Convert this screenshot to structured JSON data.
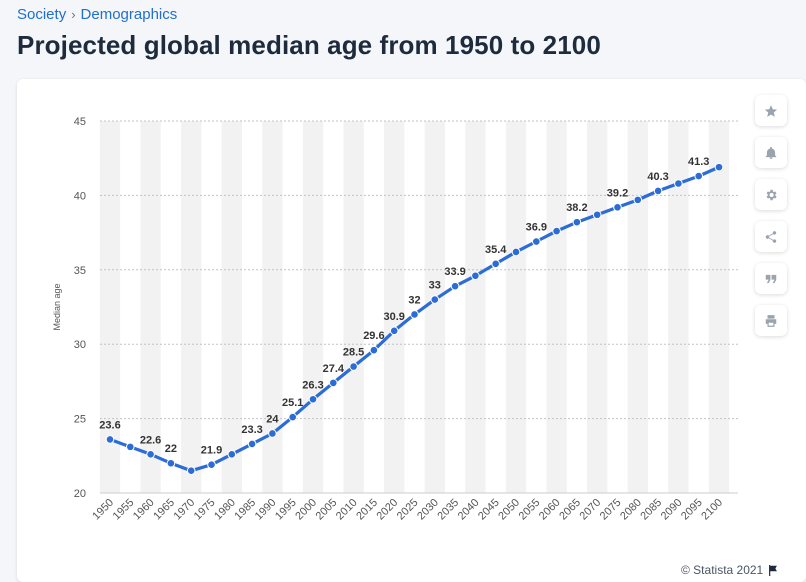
{
  "breadcrumb": {
    "items": [
      "Society",
      "Demographics"
    ],
    "separator": "›"
  },
  "title": "Projected global median age from 1950 to 2100",
  "credit": "© Statista 2021",
  "toolbar": {
    "icons": [
      "star-icon",
      "bell-icon",
      "gear-icon",
      "share-icon",
      "quote-icon",
      "print-icon"
    ]
  },
  "colors": {
    "line": "#2c6cd6",
    "accent": "#1f6fd1",
    "band": "#f2f2f2"
  },
  "chart_data": {
    "type": "line",
    "title": "",
    "xlabel": "",
    "ylabel": "Median age",
    "ylim": [
      20,
      45
    ],
    "yticks": [
      20,
      25,
      30,
      35,
      40,
      45
    ],
    "grid": true,
    "x": [
      "1950",
      "1955",
      "1960",
      "1965",
      "1970",
      "1975",
      "1980",
      "1985",
      "1990",
      "1995",
      "2000",
      "2005",
      "2010",
      "2015",
      "2020",
      "2025",
      "2030",
      "2035",
      "2040",
      "2045",
      "2050",
      "2055",
      "2060",
      "2065",
      "2070",
      "2075",
      "2080",
      "2085",
      "2090",
      "2095",
      "2100"
    ],
    "series": [
      {
        "values": [
          23.6,
          23.1,
          22.6,
          22,
          21.5,
          21.9,
          22.6,
          23.3,
          24,
          25.1,
          26.3,
          27.4,
          28.5,
          29.6,
          30.9,
          32,
          33,
          33.9,
          34.6,
          35.4,
          36.2,
          36.9,
          37.6,
          38.2,
          38.7,
          39.2,
          39.7,
          40.3,
          40.8,
          41.3,
          41.9
        ],
        "labels": [
          "23.6",
          "",
          "22.6",
          "22",
          "",
          "21.9",
          "",
          "23.3",
          "24",
          "25.1",
          "26.3",
          "27.4",
          "28.5",
          "29.6",
          "30.9",
          "32",
          "33",
          "33.9",
          "",
          "35.4",
          "",
          "36.9",
          "",
          "38.2",
          "",
          "39.2",
          "",
          "40.3",
          "",
          "41.3",
          ""
        ]
      }
    ]
  }
}
